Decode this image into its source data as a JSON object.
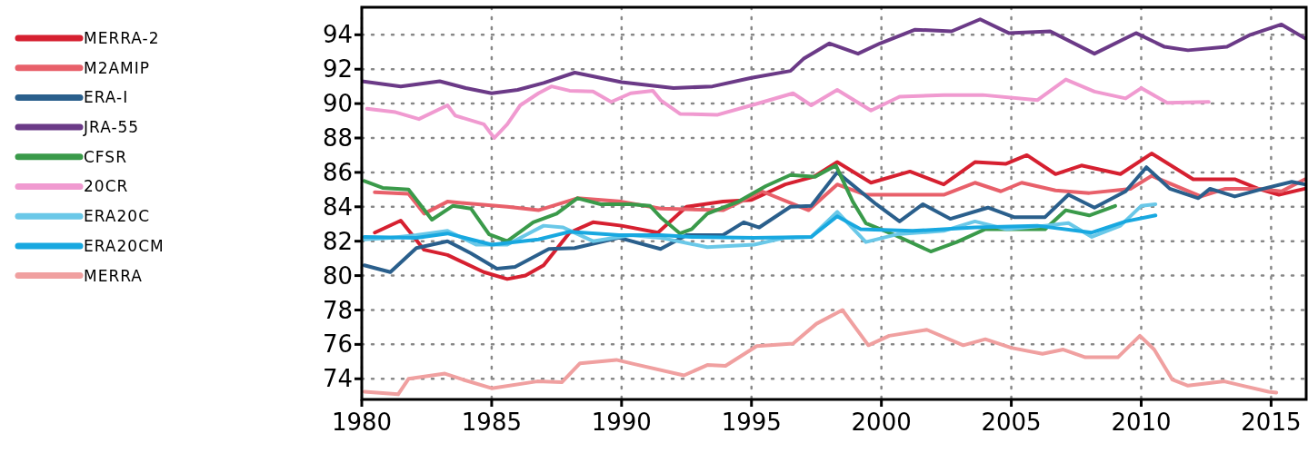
{
  "chart_data": {
    "type": "line",
    "xlim": [
      1980,
      2016.35
    ],
    "ylim": [
      72.8,
      95.6
    ],
    "xticks": [
      1980,
      1985,
      1990,
      1995,
      2000,
      2005,
      2010,
      2015
    ],
    "yticks": [
      74,
      76,
      78,
      80,
      82,
      84,
      86,
      88,
      90,
      92,
      94
    ],
    "grid": true,
    "legend": "left",
    "line_style": "solid",
    "marker": "none",
    "series": [
      {
        "name": "MERRA-2",
        "color": "#d62030",
        "x": [
          1980.5,
          1981.5,
          1982.4,
          1983.3,
          1984.7,
          1985.6,
          1986.3,
          1987,
          1988,
          1988.9,
          1990,
          1991.4,
          1992.5,
          1993.9,
          1995,
          1996.3,
          1997.4,
          1998.3,
          1999.6,
          2001.1,
          2002.4,
          2003.6,
          2004.8,
          2005.6,
          2006.7,
          2007.7,
          2009.2,
          2010.4,
          2012,
          2013.6,
          2014.5,
          2015.3,
          2016.3
        ],
        "values": [
          82.5,
          83.2,
          81.5,
          81.2,
          80.2,
          79.8,
          80,
          80.6,
          82.5,
          83.1,
          82.9,
          82.5,
          84,
          84.3,
          84.4,
          85.3,
          85.75,
          86.6,
          85.4,
          86.05,
          85.3,
          86.6,
          86.5,
          87,
          85.9,
          86.4,
          85.9,
          87.1,
          85.6,
          85.6,
          85.05,
          84.7,
          85.05
        ]
      },
      {
        "name": "M2AMIP",
        "color": "#e8606a",
        "x": [
          1980.5,
          1981.8,
          1982.4,
          1983.3,
          1985.6,
          1986.8,
          1988.3,
          1990,
          1991.5,
          1993.9,
          1995.4,
          1997.2,
          1998.3,
          1999.4,
          2002.4,
          2003.6,
          2004.6,
          2005.4,
          2006.7,
          2008,
          2009.6,
          2010.4,
          2012.3,
          2013.25,
          2014.5,
          2015.4,
          2016.3
        ],
        "values": [
          84.85,
          84.75,
          83.6,
          84.3,
          84,
          83.8,
          84.5,
          84.3,
          83.9,
          83.8,
          84.9,
          83.8,
          85.3,
          84.7,
          84.7,
          85.4,
          84.9,
          85.4,
          84.95,
          84.8,
          85.05,
          85.8,
          84.6,
          85.05,
          85.05,
          84.9,
          85.6
        ]
      },
      {
        "name": "ERA-I",
        "color": "#2a5f8c",
        "x": [
          1980.1,
          1981.1,
          1982.1,
          1983.3,
          1984.2,
          1985.2,
          1985.9,
          1987.2,
          1988.2,
          1989.9,
          1991.5,
          1992.5,
          1993.9,
          1994.7,
          1995.3,
          1996.5,
          1997.3,
          1998.3,
          1999.8,
          2000.7,
          2001.6,
          2002.65,
          2004.1,
          2005.1,
          2006.3,
          2007.2,
          2008.2,
          2009.4,
          2010.2,
          2011.1,
          2012.2,
          2012.65,
          2013.6,
          2014.7,
          2015.8,
          2016.3
        ],
        "values": [
          80.6,
          80.2,
          81.6,
          82,
          81.3,
          80.4,
          80.5,
          81.55,
          81.6,
          82.2,
          81.55,
          82.35,
          82.35,
          83.1,
          82.8,
          84,
          84.05,
          86,
          84.15,
          83.15,
          84.15,
          83.3,
          83.95,
          83.4,
          83.4,
          84.7,
          83.95,
          84.9,
          86.3,
          85.05,
          84.5,
          85.05,
          84.6,
          85.05,
          85.45,
          85.3
        ]
      },
      {
        "name": "JRA-55",
        "color": "#6b3a87",
        "x": [
          1980,
          1981.5,
          1983,
          1984,
          1985,
          1986,
          1987,
          1988.2,
          1990,
          1992,
          1993.5,
          1995,
          1996.5,
          1997,
          1998,
          1999.1,
          1999.95,
          2001.3,
          2002.7,
          2003.8,
          2004.9,
          2006.5,
          2008.2,
          2009.8,
          2010.9,
          2011.8,
          2013.3,
          2014.2,
          2015.4,
          2016.3
        ],
        "values": [
          91.3,
          91,
          91.3,
          90.9,
          90.6,
          90.8,
          91.2,
          91.8,
          91.25,
          90.9,
          91,
          91.5,
          91.9,
          92.6,
          93.5,
          92.9,
          93.5,
          94.3,
          94.2,
          94.9,
          94.1,
          94.2,
          92.9,
          94.1,
          93.3,
          93.1,
          93.3,
          94,
          94.6,
          93.8
        ]
      },
      {
        "name": "CFSR",
        "color": "#3a9a4a",
        "x": [
          1980.1,
          1980.8,
          1981.8,
          1982.7,
          1983.5,
          1984.2,
          1984.9,
          1985.6,
          1986.6,
          1987.5,
          1988.3,
          1989.2,
          1990.35,
          1991.1,
          1991.5,
          1992.25,
          1992.7,
          1993.3,
          1994.5,
          1995.55,
          1996.5,
          1997.45,
          1998.25,
          1998.9,
          1999.4,
          2000.6,
          2001.9,
          2002.9,
          2004,
          2005.2,
          2006.3,
          2007.1,
          2008,
          2009
        ],
        "values": [
          85.5,
          85.1,
          85,
          83.25,
          84.05,
          83.9,
          82.4,
          82,
          83.1,
          83.6,
          84.5,
          84.15,
          84.15,
          84.05,
          83.4,
          82.45,
          82.7,
          83.6,
          84.3,
          85.2,
          85.85,
          85.75,
          86.4,
          84.3,
          83.05,
          82.3,
          81.4,
          81.95,
          82.7,
          82.7,
          82.7,
          83.8,
          83.5,
          84.05
        ]
      },
      {
        "name": "20CR",
        "color": "#f09ad0",
        "x": [
          1980.2,
          1981.3,
          1982.2,
          1983.3,
          1983.6,
          1984.7,
          1985.1,
          1985.6,
          1986.1,
          1986.8,
          1987.3,
          1988,
          1988.9,
          1989.6,
          1990.35,
          1991.2,
          1991.5,
          1992.25,
          1993.7,
          1995,
          1996.6,
          1997.3,
          1998.3,
          1999.6,
          2000.7,
          2002.4,
          2003.9,
          2006,
          2007.1,
          2008.2,
          2009.4,
          2010,
          2011,
          2012.6
        ],
        "values": [
          89.7,
          89.5,
          89.1,
          89.9,
          89.3,
          88.8,
          88,
          88.8,
          89.9,
          90.6,
          91,
          90.75,
          90.7,
          90.1,
          90.6,
          90.75,
          90.2,
          89.4,
          89.35,
          89.9,
          90.6,
          89.9,
          90.8,
          89.6,
          90.4,
          90.5,
          90.5,
          90.2,
          91.4,
          90.7,
          90.3,
          90.9,
          90.05,
          90.1
        ]
      },
      {
        "name": "ERA20C",
        "color": "#6ac8e8",
        "x": [
          1980.1,
          1981.1,
          1982.1,
          1983.3,
          1984.4,
          1985.6,
          1987,
          1987.75,
          1988.9,
          1990.35,
          1991.5,
          1993.3,
          1995.1,
          1996.3,
          1997.3,
          1998.3,
          1999.4,
          2000.6,
          2002.4,
          2003.6,
          2004.8,
          2006.3,
          2007.2,
          2008.1,
          2009.2,
          2010,
          2010.55
        ],
        "values": [
          82.1,
          82.2,
          82.35,
          82.6,
          81.8,
          81.8,
          82.9,
          82.8,
          82,
          82.35,
          82.2,
          81.65,
          81.8,
          82.2,
          82.25,
          83.7,
          81.95,
          82.4,
          82.6,
          83.15,
          82.7,
          82.9,
          83.05,
          82.25,
          82.9,
          84.05,
          84.15
        ]
      },
      {
        "name": "ERA20CM",
        "color": "#18a8e0",
        "x": [
          1980.1,
          1982.1,
          1983.3,
          1985,
          1986.8,
          1988,
          1989.9,
          1991.5,
          1992.7,
          1995.1,
          1997.3,
          1998.3,
          1999.2,
          2001.2,
          2003.6,
          2006,
          2008.1,
          2009.4,
          2010.55
        ],
        "values": [
          82.25,
          82.2,
          82.45,
          81.8,
          82.1,
          82.55,
          82.35,
          82.35,
          82.25,
          82.2,
          82.25,
          83.45,
          82.7,
          82.6,
          82.8,
          82.9,
          82.5,
          83.15,
          83.5
        ]
      },
      {
        "name": "MERRA",
        "color": "#f0a0a0",
        "x": [
          1980.1,
          1981.4,
          1981.8,
          1983.2,
          1983.9,
          1985,
          1986.75,
          1987.7,
          1988.4,
          1989.8,
          1990.5,
          1992.4,
          1993.3,
          1994,
          1995.2,
          1996.6,
          1997.5,
          1998.5,
          1999.5,
          2000.3,
          2001.75,
          2003.15,
          2004,
          2005,
          2006.2,
          2007,
          2007.85,
          2009.1,
          2009.95,
          2010.5,
          2011.2,
          2011.8,
          2013.2,
          2013.9,
          2014.9,
          2015.2
        ],
        "values": [
          73.25,
          73.1,
          74,
          74.3,
          73.95,
          73.45,
          73.85,
          73.8,
          74.9,
          75.1,
          74.85,
          74.2,
          74.8,
          74.75,
          75.9,
          76.05,
          77.2,
          78,
          75.95,
          76.5,
          76.85,
          75.95,
          76.3,
          75.8,
          75.45,
          75.7,
          75.25,
          75.25,
          76.5,
          75.7,
          73.95,
          73.6,
          73.85,
          73.6,
          73.25,
          73.2
        ]
      }
    ]
  }
}
